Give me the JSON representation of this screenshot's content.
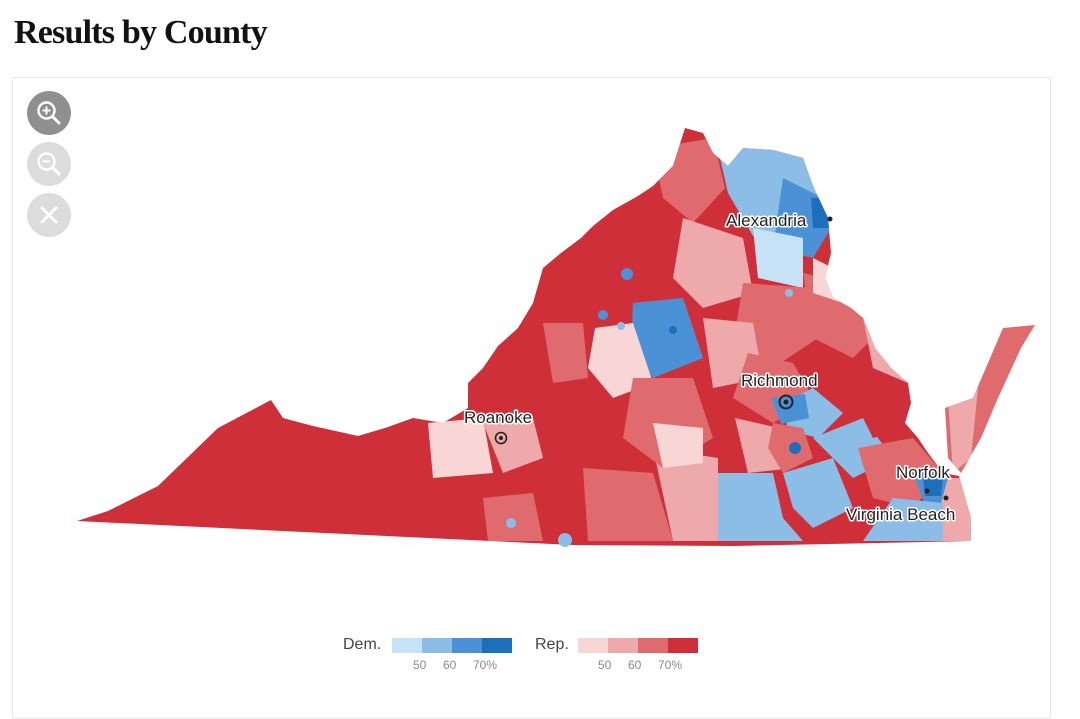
{
  "title": "Results by County",
  "controls": {
    "zoom_in_icon": "zoom-in-icon",
    "zoom_out_icon": "zoom-out-icon",
    "reset_icon": "close-icon"
  },
  "cities": [
    {
      "name": "Alexandria",
      "marker": "dot"
    },
    {
      "name": "Richmond",
      "marker": "ring"
    },
    {
      "name": "Roanoke",
      "marker": "ring"
    },
    {
      "name": "Norfolk",
      "marker": "dot"
    },
    {
      "name": "Virginia Beach",
      "marker": "dot"
    }
  ],
  "legend": {
    "dem": {
      "label": "Dem.",
      "colors": [
        "#c6e2f7",
        "#8bbde6",
        "#4b91d6",
        "#1b6fbb"
      ],
      "ticks": [
        "50",
        "60",
        "70%"
      ]
    },
    "rep": {
      "label": "Rep.",
      "colors": [
        "#f9d6d6",
        "#eea9aa",
        "#e06b6f",
        "#cf2f38"
      ],
      "ticks": [
        "50",
        "60",
        "70%"
      ]
    }
  }
}
